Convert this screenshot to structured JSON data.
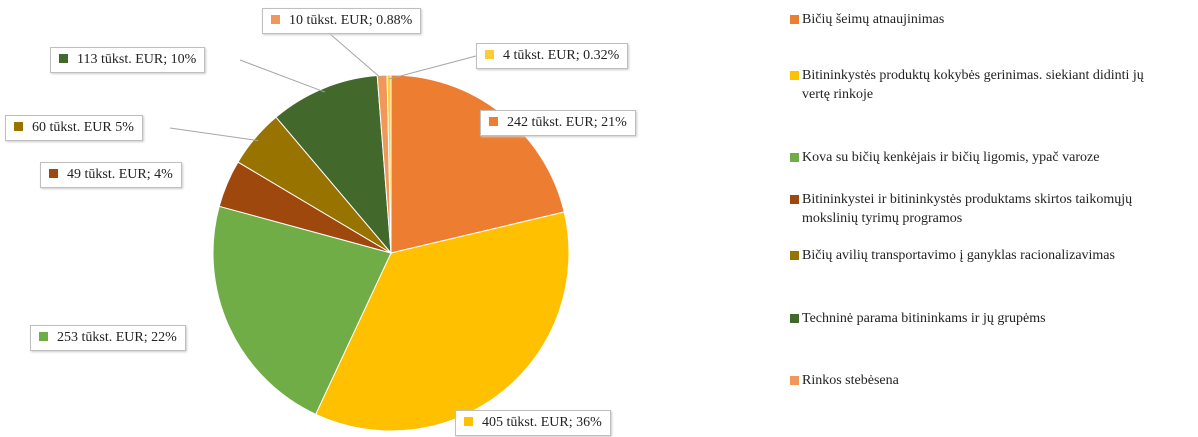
{
  "chart_data": {
    "type": "pie",
    "categories": [
      "Bičių šeimų atnaujinimas",
      "Bitininkystės produktų kokybės gerinimas. siekiant didinti jų vertę rinkoje",
      "Kova su bičių kenkėjais ir bičių ligomis, ypač varoze",
      "Bitininkystei ir bitininkystės produktams skirtos taikomųjų mokslinių tyrimų programos",
      "Bičių avilių transportavimo į ganyklas racionalizavimas",
      "Techninė parama bitininkams ir jų grupėms",
      "Rinkos stebėsena",
      null
    ],
    "values": [
      242,
      405,
      253,
      49,
      60,
      113,
      10,
      4
    ],
    "value_labels": [
      "242 tūkst. EUR; 21%",
      "405 tūkst. EUR; 36%",
      "253 tūkst. EUR; 22%",
      "49 tūkst. EUR; 4%",
      "60 tūkst. EUR 5%",
      "113 tūkst. EUR; 10%",
      "10 tūkst. EUR; 0.88%",
      "4 tūkst. EUR; 0.32%"
    ],
    "colors": [
      "#ED7D31",
      "#FFC000",
      "#70AD47",
      "#9E480E",
      "#997300",
      "#43682B",
      "#F1975A",
      "#FFCD33"
    ],
    "legend": "right"
  }
}
